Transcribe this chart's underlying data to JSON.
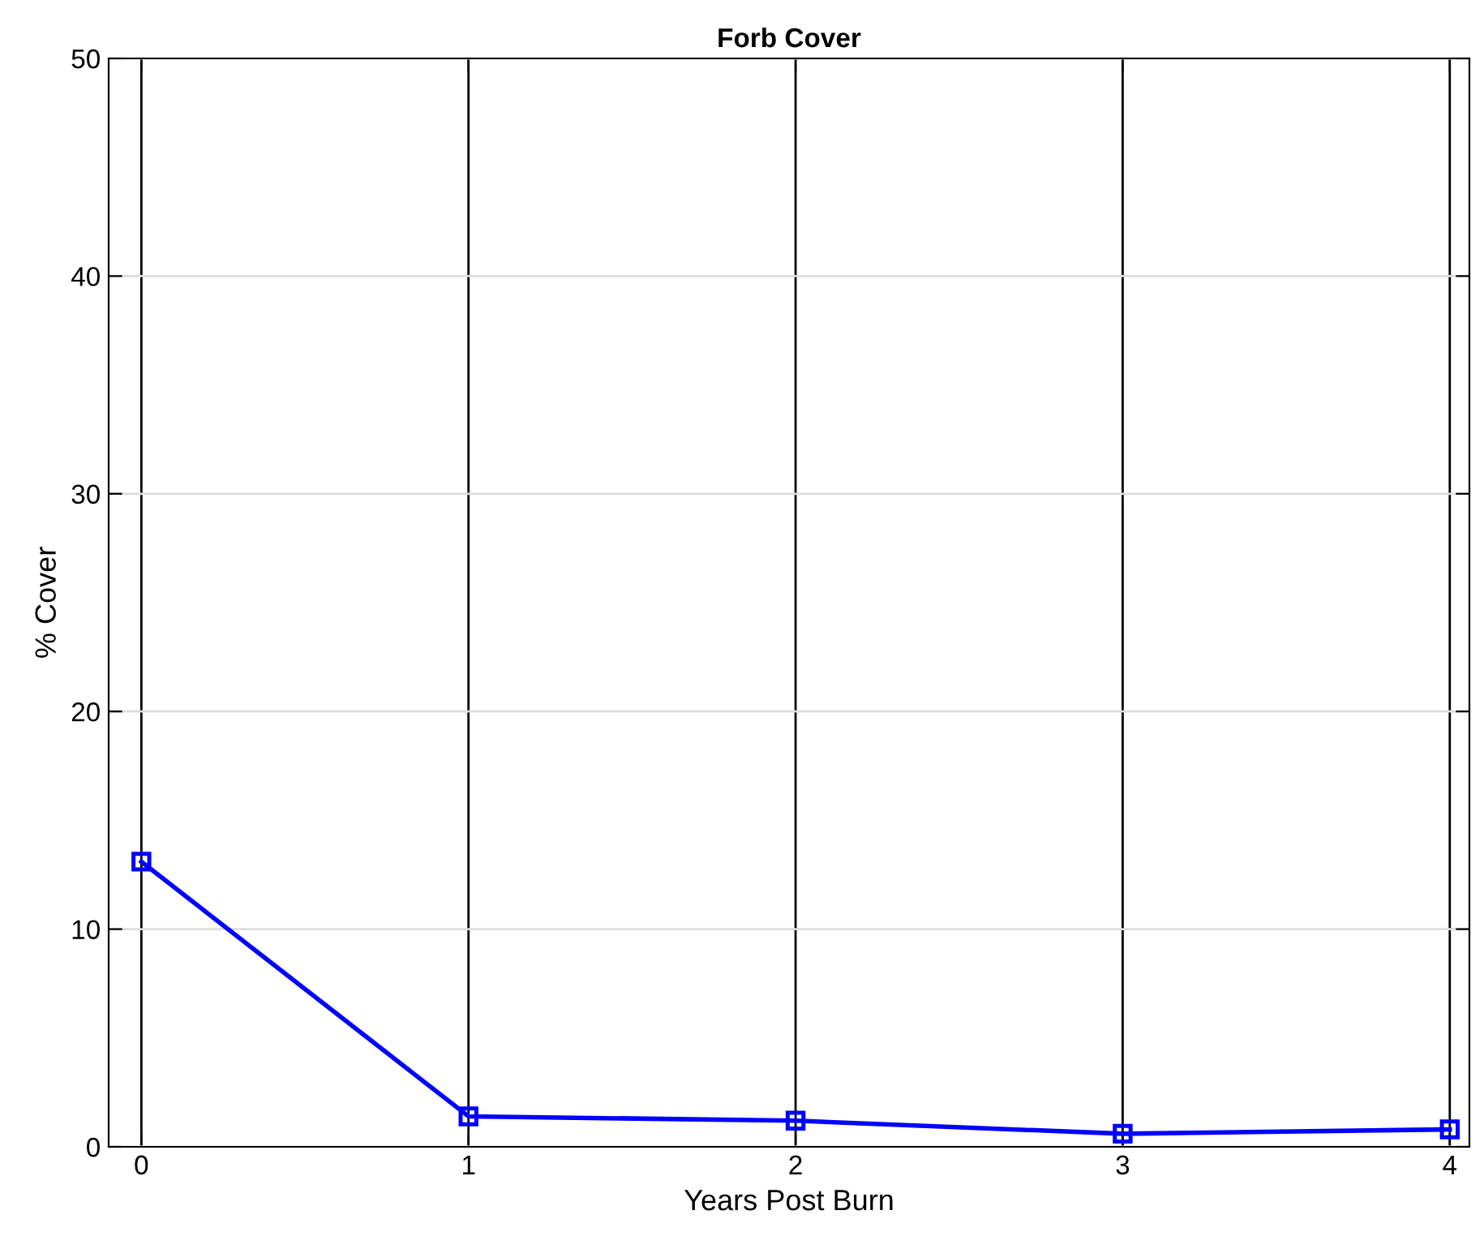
{
  "chart_data": {
    "type": "line",
    "title": "Forb Cover",
    "xlabel": "Years Post Burn",
    "ylabel": "% Cover",
    "x": [
      0,
      1,
      2,
      3,
      4
    ],
    "series": [
      {
        "color": "#0000ff",
        "values": [
          13.1,
          1.4,
          1.2,
          0.6,
          0.8
        ]
      }
    ],
    "xlim": [
      -0.1,
      4.06
    ],
    "xticks": [
      0,
      1,
      2,
      3,
      4
    ],
    "ylim": [
      0,
      50
    ],
    "yticks": [
      0,
      10,
      20,
      30,
      40,
      50
    ],
    "grid": true,
    "marker": "square",
    "line_style": "solid"
  }
}
